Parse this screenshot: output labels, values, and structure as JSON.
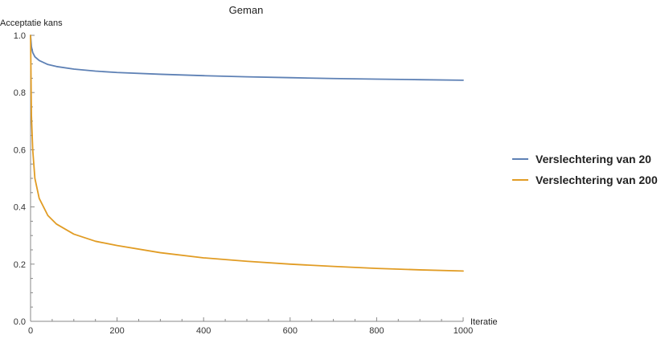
{
  "chart_data": {
    "type": "line",
    "title": "Geman",
    "xlabel": "Iteratie",
    "ylabel": "Acceptatie kans",
    "xlim": [
      0,
      1000
    ],
    "ylim": [
      0,
      1.0
    ],
    "x_ticks": [
      0,
      200,
      400,
      600,
      800,
      1000
    ],
    "y_ticks": [
      0.0,
      0.2,
      0.4,
      0.6,
      0.8,
      1.0
    ],
    "x_tick_labels": [
      "0",
      "200",
      "400",
      "600",
      "800",
      "1000"
    ],
    "y_tick_labels": [
      "0.0",
      "0.2",
      "0.4",
      "0.6",
      "0.8",
      "1.0"
    ],
    "grid": false,
    "legend_position": "right",
    "series": [
      {
        "name": "Verslechtering van 20",
        "color": "#5e81b5",
        "x": [
          0,
          2,
          5,
          10,
          20,
          40,
          60,
          100,
          150,
          200,
          300,
          400,
          500,
          600,
          700,
          800,
          900,
          1000
        ],
        "y": [
          1.0,
          0.96,
          0.94,
          0.925,
          0.912,
          0.898,
          0.891,
          0.882,
          0.875,
          0.87,
          0.864,
          0.859,
          0.855,
          0.852,
          0.849,
          0.847,
          0.845,
          0.843
        ]
      },
      {
        "name": "Verslechtering van 200",
        "color": "#e19c24",
        "x": [
          0,
          2,
          5,
          10,
          20,
          40,
          60,
          100,
          150,
          200,
          300,
          400,
          500,
          600,
          700,
          800,
          900,
          1000
        ],
        "y": [
          1.0,
          0.72,
          0.6,
          0.5,
          0.43,
          0.37,
          0.34,
          0.305,
          0.28,
          0.265,
          0.24,
          0.222,
          0.21,
          0.2,
          0.192,
          0.185,
          0.18,
          0.176
        ]
      }
    ]
  }
}
